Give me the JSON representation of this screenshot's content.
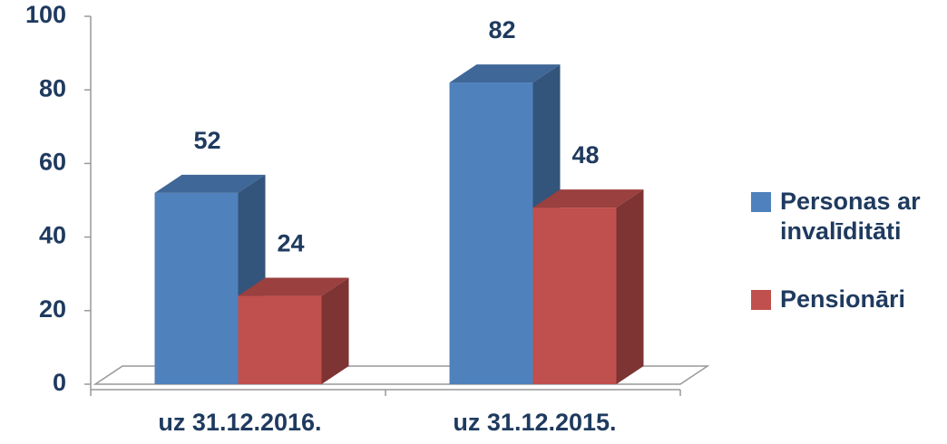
{
  "chart_data": {
    "type": "bar3d",
    "categories": [
      "uz 31.12.2016.",
      "uz 31.12.2015."
    ],
    "series": [
      {
        "name": "Personas ar invalīditāti",
        "color": "#4f81bd",
        "values": [
          52,
          82
        ]
      },
      {
        "name": "Pensionāri",
        "color": "#c0504d",
        "values": [
          24,
          48
        ]
      }
    ],
    "ylim": [
      0,
      100
    ],
    "yticks": [
      0,
      20,
      40,
      60,
      80,
      100
    ],
    "legend": "right"
  }
}
